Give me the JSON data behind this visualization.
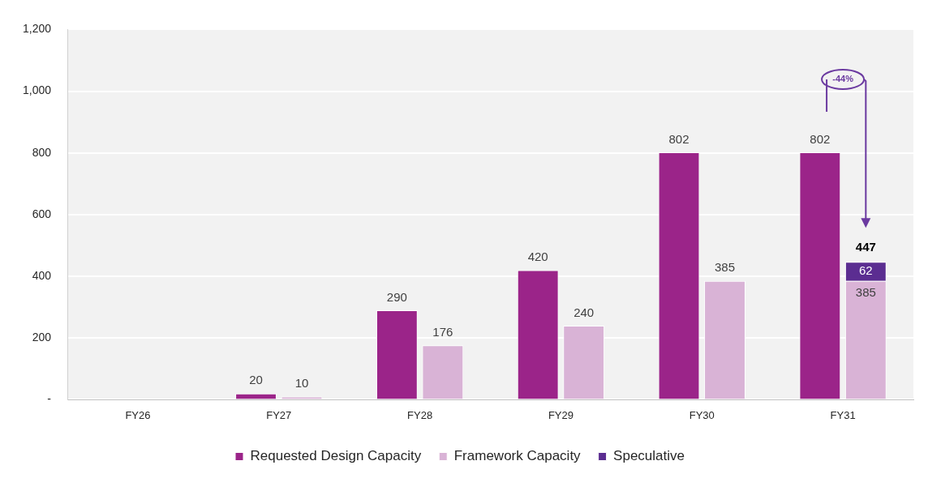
{
  "chart_data": {
    "type": "bar",
    "categories": [
      "FY26",
      "FY27",
      "FY28",
      "FY29",
      "FY30",
      "FY31"
    ],
    "series": [
      {
        "name": "Requested Design Capacity",
        "color": "#9b2489",
        "values": [
          null,
          20,
          290,
          420,
          802,
          802
        ]
      },
      {
        "name": "Framework Capacity",
        "color": "#d9b3d6",
        "values": [
          null,
          10,
          176,
          240,
          385,
          385
        ]
      },
      {
        "name": "Speculative",
        "color": "#5b2d91",
        "values": [
          null,
          null,
          null,
          null,
          null,
          62
        ],
        "base": [
          null,
          null,
          null,
          null,
          null,
          385
        ]
      }
    ],
    "annotations": [
      "-44%",
      {
        "text": "447",
        "x": "FY31",
        "y": 447
      }
    ],
    "ylim": [
      0,
      1200
    ],
    "yticks": [
      {
        "value": 0,
        "label": "-"
      },
      200,
      400,
      600,
      800,
      {
        "value": 1000,
        "label": "1,000"
      },
      {
        "value": 1200,
        "label": "1,200"
      }
    ],
    "grid": "y",
    "legend": "bottom",
    "data_labels": true
  }
}
